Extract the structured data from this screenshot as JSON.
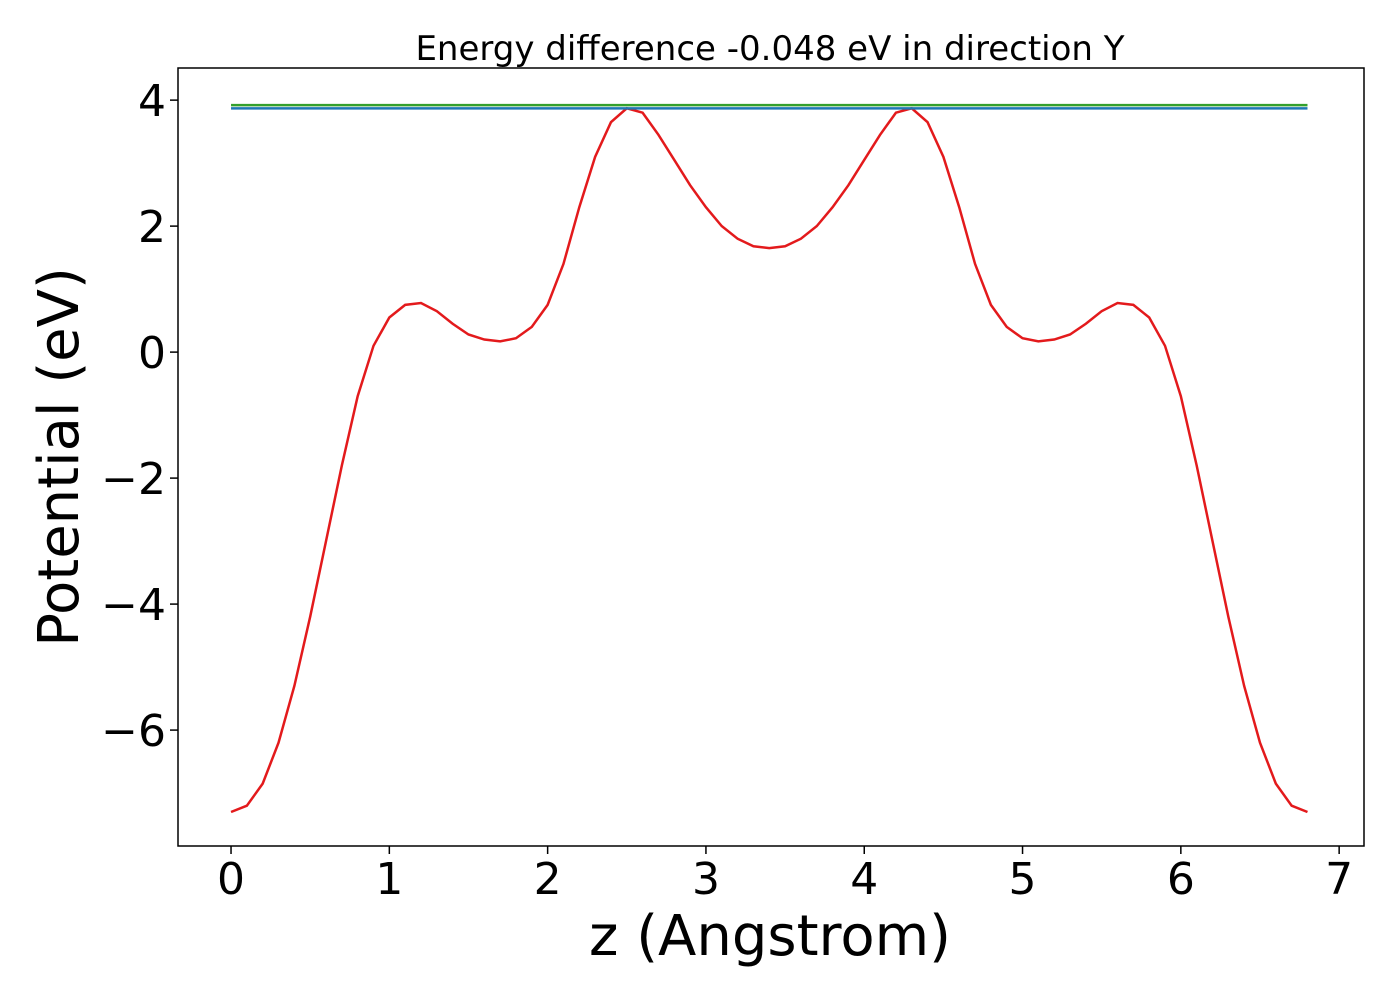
{
  "chart_data": {
    "type": "line",
    "title": "Energy difference -0.048 eV in direction Y",
    "xlabel": "z (Angstrom)",
    "ylabel": "Potential (eV)",
    "xlim": [
      -0.335,
      7.157
    ],
    "ylim": [
      -7.84,
      4.51
    ],
    "xticks": [
      0,
      1,
      2,
      3,
      4,
      5,
      6,
      7
    ],
    "yticks": [
      {
        "value": -6,
        "label": "−6"
      },
      {
        "value": -4,
        "label": "−4"
      },
      {
        "value": -2,
        "label": "−2"
      },
      0,
      2,
      4
    ],
    "series": [
      {
        "color": "#e31a1c",
        "x": [
          0,
          0.1,
          0.2,
          0.3,
          0.4,
          0.5,
          0.6,
          0.7,
          0.8,
          0.9,
          1.0,
          1.1,
          1.2,
          1.3,
          1.4,
          1.5,
          1.6,
          1.7,
          1.8,
          1.9,
          2.0,
          2.1,
          2.2,
          2.3,
          2.4,
          2.5,
          2.6,
          2.7,
          2.8,
          2.9,
          3.0,
          3.1,
          3.2,
          3.3,
          3.4,
          3.5,
          3.6,
          3.7,
          3.8,
          3.9,
          4.0,
          4.1,
          4.2,
          4.3,
          4.4,
          4.5,
          4.6,
          4.7,
          4.8,
          4.9,
          5.0,
          5.1,
          5.2,
          5.3,
          5.4,
          5.5,
          5.6,
          5.7,
          5.8,
          5.9,
          6.0,
          6.1,
          6.2,
          6.3,
          6.4,
          6.5,
          6.6,
          6.7,
          6.8
        ],
        "values": [
          -7.3,
          -7.2,
          -6.85,
          -6.2,
          -5.3,
          -4.2,
          -3.0,
          -1.8,
          -0.7,
          0.1,
          0.55,
          0.75,
          0.78,
          0.65,
          0.45,
          0.28,
          0.2,
          0.17,
          0.22,
          0.4,
          0.75,
          1.4,
          2.3,
          3.1,
          3.65,
          3.87,
          3.8,
          3.45,
          3.05,
          2.65,
          2.3,
          2.0,
          1.8,
          1.68,
          1.65,
          1.68,
          1.8,
          2.0,
          2.3,
          2.65,
          3.05,
          3.45,
          3.8,
          3.87,
          3.65,
          3.1,
          2.3,
          1.4,
          0.75,
          0.4,
          0.22,
          0.17,
          0.2,
          0.28,
          0.45,
          0.65,
          0.78,
          0.75,
          0.55,
          0.1,
          -0.7,
          -1.8,
          -3.0,
          -4.2,
          -5.3,
          -6.2,
          -6.85,
          -7.2,
          -7.3
        ]
      },
      {
        "color": "#33a02c",
        "x": [
          0,
          6.8
        ],
        "values": [
          3.92,
          3.92
        ]
      },
      {
        "color": "#1f78b4",
        "x": [
          0,
          6.8
        ],
        "values": [
          3.87,
          3.87
        ]
      }
    ]
  }
}
